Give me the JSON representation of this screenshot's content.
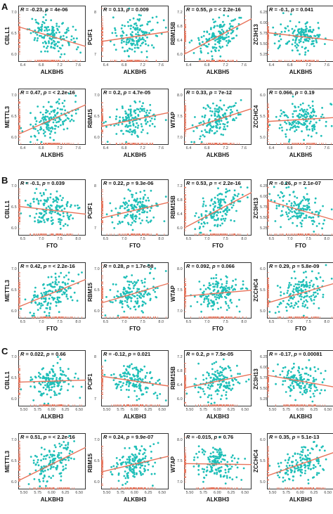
{
  "sections": [
    {
      "letter": "A",
      "xlabel": "ALKBH5",
      "xticks": [
        "6.4",
        "6.8",
        "7.2",
        "7.6"
      ],
      "xrange": [
        6.3,
        7.7
      ],
      "plots": [
        {
          "gene": "CBLL1",
          "r": "-0.23",
          "p": "4e-06",
          "slope": -1,
          "yticks": [
            "6.0",
            "6.5",
            "7.0"
          ],
          "yrange": [
            5.8,
            7.3
          ]
        },
        {
          "gene": "PCIF1",
          "r": "0.13",
          "p": "0.009",
          "slope": 0.5,
          "yticks": [
            "7",
            "8"
          ],
          "yrange": [
            6.5,
            8.8
          ]
        },
        {
          "gene": "RBM15B",
          "r": "0.55",
          "p": "< 2.2e-16",
          "slope": 1.8,
          "yticks": [
            "6.0",
            "6.4",
            "6.8",
            "7.2"
          ],
          "yrange": [
            5.8,
            7.4
          ]
        },
        {
          "gene": "ZC3H13",
          "r": "-0.1",
          "p": "0.041",
          "slope": -0.4,
          "yticks": [
            "5.25",
            "5.50",
            "5.75",
            "6.00",
            "6.25"
          ],
          "yrange": [
            5.1,
            6.35
          ]
        },
        {
          "gene": "METTL3",
          "r": "0.47",
          "p": "< 2.2e-16",
          "slope": 1.5,
          "yticks": [
            "6.0",
            "6.5",
            "7.0"
          ],
          "yrange": [
            5.8,
            7.3
          ]
        },
        {
          "gene": "RBM15",
          "r": "0.2",
          "p": "4.7e-05",
          "slope": 0.7,
          "yticks": [
            "6.0",
            "6.5",
            "7.0"
          ],
          "yrange": [
            5.8,
            7.3
          ]
        },
        {
          "gene": "WTAP",
          "r": "0.33",
          "p": "7e-12",
          "slope": 1.1,
          "yticks": [
            "7.0",
            "7.5",
            "8.0"
          ],
          "yrange": [
            6.7,
            8.3
          ]
        },
        {
          "gene": "ZCCHC4",
          "r": "0.066",
          "p": "0.19",
          "slope": 0.2,
          "yticks": [
            "5.0",
            "5.5",
            "6.0"
          ],
          "yrange": [
            4.8,
            6.3
          ]
        }
      ]
    },
    {
      "letter": "B",
      "xlabel": "FTO",
      "xticks": [
        "6.5",
        "7.0",
        "7.5",
        "8.0"
      ],
      "xrange": [
        6.3,
        8.1
      ],
      "plots": [
        {
          "gene": "CBLL1",
          "r": "-0.1",
          "p": "0.039",
          "slope": -0.4,
          "yticks": [
            "6.0",
            "6.5",
            "7.0"
          ],
          "yrange": [
            5.8,
            7.3
          ]
        },
        {
          "gene": "PCIF1",
          "r": "0.22",
          "p": "9.3e-06",
          "slope": 0.8,
          "yticks": [
            "7",
            "8"
          ],
          "yrange": [
            6.5,
            8.8
          ]
        },
        {
          "gene": "RBM15B",
          "r": "0.53",
          "p": "< 2.2e-16",
          "slope": 1.8,
          "yticks": [
            "6.0",
            "6.4",
            "6.8",
            "7.2"
          ],
          "yrange": [
            5.8,
            7.4
          ]
        },
        {
          "gene": "ZC3H13",
          "r": "-0.26",
          "p": "2.1e-07",
          "slope": -1,
          "yticks": [
            "5.25",
            "5.50",
            "5.75",
            "6.00",
            "6.25"
          ],
          "yrange": [
            5.1,
            6.35
          ]
        },
        {
          "gene": "METTL3",
          "r": "0.42",
          "p": "< 2.2e-16",
          "slope": 1.4,
          "yticks": [
            "6.0",
            "6.5",
            "7.0"
          ],
          "yrange": [
            5.8,
            7.3
          ]
        },
        {
          "gene": "RBM15",
          "r": "0.28",
          "p": "1.7e-08",
          "slope": 1,
          "yticks": [
            "6.0",
            "6.5",
            "7.0"
          ],
          "yrange": [
            5.8,
            7.3
          ]
        },
        {
          "gene": "WTAP",
          "r": "0.092",
          "p": "0.066",
          "slope": 0.3,
          "yticks": [
            "7.0",
            "7.5",
            "8.0"
          ],
          "yrange": [
            6.7,
            8.3
          ]
        },
        {
          "gene": "ZCCHC4",
          "r": "0.29",
          "p": "5.8e-09",
          "slope": 1,
          "yticks": [
            "5.0",
            "5.5",
            "6.0"
          ],
          "yrange": [
            4.8,
            6.3
          ]
        }
      ]
    },
    {
      "letter": "C",
      "xlabel": "ALKBH3",
      "xticks": [
        "5.50",
        "5.75",
        "6.00",
        "6.25",
        "6.50"
      ],
      "xrange": [
        5.45,
        6.65
      ],
      "plots": [
        {
          "gene": "CBLL1",
          "r": "0.022",
          "p": "0.66",
          "slope": 0.1,
          "yticks": [
            "6.0",
            "6.5",
            "7.0"
          ],
          "yrange": [
            5.8,
            7.3
          ]
        },
        {
          "gene": "PCIF1",
          "r": "-0.12",
          "p": "0.021",
          "slope": -0.5,
          "yticks": [
            "7",
            "8"
          ],
          "yrange": [
            6.5,
            8.8
          ]
        },
        {
          "gene": "RBM15B",
          "r": "0.2",
          "p": "7.5e-05",
          "slope": 0.7,
          "yticks": [
            "6.0",
            "6.4",
            "6.8",
            "7.2"
          ],
          "yrange": [
            5.8,
            7.4
          ]
        },
        {
          "gene": "ZC3H13",
          "r": "-0.17",
          "p": "0.00081",
          "slope": -0.6,
          "yticks": [
            "5.25",
            "5.50",
            "5.75",
            "6.00",
            "6.25"
          ],
          "yrange": [
            5.1,
            6.35
          ]
        },
        {
          "gene": "METTL3",
          "r": "0.51",
          "p": "< 2.2e-16",
          "slope": 1.7,
          "yticks": [
            "6.0",
            "6.5",
            "7.0"
          ],
          "yrange": [
            5.8,
            7.3
          ]
        },
        {
          "gene": "RBM15",
          "r": "0.24",
          "p": "9.9e-07",
          "slope": 0.8,
          "yticks": [
            "6.0",
            "6.5",
            "7.0"
          ],
          "yrange": [
            5.8,
            7.3
          ]
        },
        {
          "gene": "WTAP",
          "r": "-0.015",
          "p": "0.76",
          "slope": -0.05,
          "yticks": [
            "7.0",
            "7.5",
            "8.0"
          ],
          "yrange": [
            6.7,
            8.3
          ]
        },
        {
          "gene": "ZCCHC4",
          "r": "0.35",
          "p": "5.1e-13",
          "slope": 1.2,
          "yticks": [
            "5.0",
            "5.5",
            "6.0"
          ],
          "yrange": [
            4.8,
            6.3
          ]
        }
      ]
    }
  ],
  "colors": {
    "points": "#1fbfb8",
    "line": "#e8735a",
    "rug": "#e8735a"
  },
  "chart_data": {
    "type": "scatter",
    "note_fields": [
      "gene",
      "r",
      "p"
    ],
    "panels": [
      "A",
      "B",
      "C"
    ]
  }
}
